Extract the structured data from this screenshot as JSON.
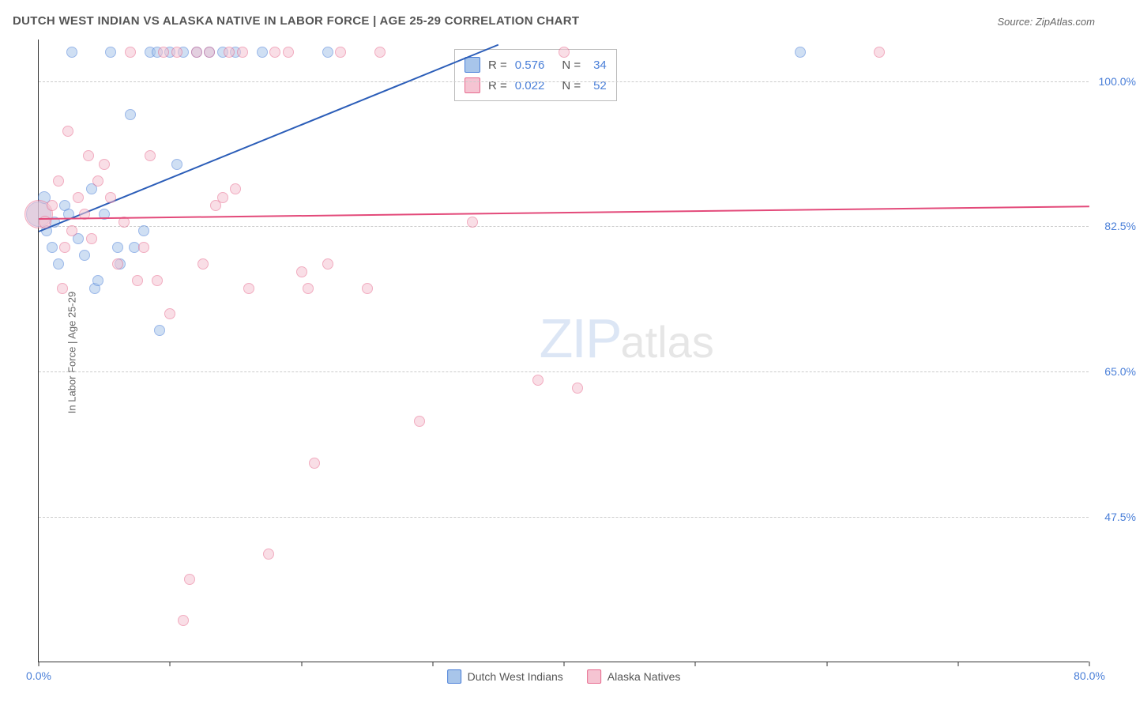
{
  "title": "DUTCH WEST INDIAN VS ALASKA NATIVE IN LABOR FORCE | AGE 25-29 CORRELATION CHART",
  "source_label": "Source: ",
  "source_name": "ZipAtlas.com",
  "ylabel": "In Labor Force | Age 25-29",
  "watermark_zip": "ZIP",
  "watermark_atlas": "atlas",
  "chart": {
    "type": "scatter",
    "xlim": [
      0,
      80
    ],
    "ylim": [
      30,
      105
    ],
    "xticks": [
      0.0,
      80.0
    ],
    "xtick_labels": [
      "0.0%",
      "80.0%"
    ],
    "xtick_marks": [
      0,
      10,
      20,
      30,
      40,
      50,
      60,
      70,
      80
    ],
    "yticks": [
      47.5,
      65.0,
      82.5,
      100.0
    ],
    "ytick_labels": [
      "47.5%",
      "65.0%",
      "82.5%",
      "100.0%"
    ],
    "grid_color": "#cccccc",
    "background_color": "#ffffff",
    "axis_color": "#333333",
    "tick_font_color": "#4a7fd8",
    "tick_fontsize": 14,
    "title_fontsize": 15,
    "title_color": "#555555",
    "ylabel_fontsize": 13,
    "series": [
      {
        "name": "Dutch West Indians",
        "fill": "#a8c5ea",
        "stroke": "#4a7fd8",
        "fill_opacity": 0.55,
        "R": "0.576",
        "N": "34",
        "trend": {
          "x1": 0,
          "y1": 82.0,
          "x2": 35,
          "y2": 104.5,
          "color": "#2b5db8",
          "width": 2
        },
        "points": [
          {
            "x": 0,
            "y": 84,
            "r": 16
          },
          {
            "x": 0.4,
            "y": 86,
            "r": 8
          },
          {
            "x": 0.6,
            "y": 82,
            "r": 7
          },
          {
            "x": 1,
            "y": 80,
            "r": 7
          },
          {
            "x": 1.2,
            "y": 83,
            "r": 7
          },
          {
            "x": 1.5,
            "y": 78,
            "r": 7
          },
          {
            "x": 2,
            "y": 85,
            "r": 7
          },
          {
            "x": 2.3,
            "y": 84,
            "r": 7
          },
          {
            "x": 2.5,
            "y": 103.5,
            "r": 7
          },
          {
            "x": 3,
            "y": 81,
            "r": 7
          },
          {
            "x": 3.5,
            "y": 79,
            "r": 7
          },
          {
            "x": 4,
            "y": 87,
            "r": 7
          },
          {
            "x": 4.3,
            "y": 75,
            "r": 7
          },
          {
            "x": 5,
            "y": 84,
            "r": 7
          },
          {
            "x": 5.5,
            "y": 103.5,
            "r": 7
          },
          {
            "x": 6,
            "y": 80,
            "r": 7
          },
          {
            "x": 6.2,
            "y": 78,
            "r": 7
          },
          {
            "x": 7,
            "y": 96,
            "r": 7
          },
          {
            "x": 7.3,
            "y": 80,
            "r": 7
          },
          {
            "x": 8,
            "y": 82,
            "r": 7
          },
          {
            "x": 8.5,
            "y": 103.5,
            "r": 7
          },
          {
            "x": 9,
            "y": 103.5,
            "r": 7
          },
          {
            "x": 9.2,
            "y": 70,
            "r": 7
          },
          {
            "x": 10,
            "y": 103.5,
            "r": 7
          },
          {
            "x": 10.5,
            "y": 90,
            "r": 7
          },
          {
            "x": 11,
            "y": 103.5,
            "r": 7
          },
          {
            "x": 12,
            "y": 103.5,
            "r": 7
          },
          {
            "x": 13,
            "y": 103.5,
            "r": 7
          },
          {
            "x": 14,
            "y": 103.5,
            "r": 7
          },
          {
            "x": 15,
            "y": 103.5,
            "r": 7
          },
          {
            "x": 17,
            "y": 103.5,
            "r": 7
          },
          {
            "x": 22,
            "y": 103.5,
            "r": 7
          },
          {
            "x": 58,
            "y": 103.5,
            "r": 7
          },
          {
            "x": 4.5,
            "y": 76,
            "r": 7
          }
        ]
      },
      {
        "name": "Alaska Natives",
        "fill": "#f5c4d2",
        "stroke": "#e76a8e",
        "fill_opacity": 0.55,
        "R": "0.022",
        "N": "52",
        "trend": {
          "x1": 0,
          "y1": 83.5,
          "x2": 80,
          "y2": 85.0,
          "color": "#e34a7a",
          "width": 2
        },
        "points": [
          {
            "x": 0,
            "y": 84,
            "r": 18
          },
          {
            "x": 0.5,
            "y": 83,
            "r": 8
          },
          {
            "x": 1,
            "y": 85,
            "r": 7
          },
          {
            "x": 1.5,
            "y": 88,
            "r": 7
          },
          {
            "x": 2,
            "y": 80,
            "r": 7
          },
          {
            "x": 2.5,
            "y": 82,
            "r": 7
          },
          {
            "x": 3,
            "y": 86,
            "r": 7
          },
          {
            "x": 3.5,
            "y": 84,
            "r": 7
          },
          {
            "x": 4,
            "y": 81,
            "r": 7
          },
          {
            "x": 4.5,
            "y": 88,
            "r": 7
          },
          {
            "x": 5,
            "y": 90,
            "r": 7
          },
          {
            "x": 5.5,
            "y": 86,
            "r": 7
          },
          {
            "x": 6,
            "y": 78,
            "r": 7
          },
          {
            "x": 6.5,
            "y": 83,
            "r": 7
          },
          {
            "x": 7,
            "y": 103.5,
            "r": 7
          },
          {
            "x": 7.5,
            "y": 76,
            "r": 7
          },
          {
            "x": 8,
            "y": 80,
            "r": 7
          },
          {
            "x": 8.5,
            "y": 91,
            "r": 7
          },
          {
            "x": 9,
            "y": 76,
            "r": 7
          },
          {
            "x": 9.5,
            "y": 103.5,
            "r": 7
          },
          {
            "x": 10,
            "y": 72,
            "r": 7
          },
          {
            "x": 10.5,
            "y": 103.5,
            "r": 7
          },
          {
            "x": 11,
            "y": 35,
            "r": 7
          },
          {
            "x": 11.5,
            "y": 40,
            "r": 7
          },
          {
            "x": 12,
            "y": 103.5,
            "r": 7
          },
          {
            "x": 12.5,
            "y": 78,
            "r": 7
          },
          {
            "x": 13,
            "y": 103.5,
            "r": 7
          },
          {
            "x": 13.5,
            "y": 85,
            "r": 7
          },
          {
            "x": 14,
            "y": 86,
            "r": 7
          },
          {
            "x": 14.5,
            "y": 103.5,
            "r": 7
          },
          {
            "x": 15,
            "y": 87,
            "r": 7
          },
          {
            "x": 15.5,
            "y": 103.5,
            "r": 7
          },
          {
            "x": 16,
            "y": 75,
            "r": 7
          },
          {
            "x": 17.5,
            "y": 43,
            "r": 7
          },
          {
            "x": 18,
            "y": 103.5,
            "r": 7
          },
          {
            "x": 19,
            "y": 103.5,
            "r": 7
          },
          {
            "x": 20,
            "y": 77,
            "r": 7
          },
          {
            "x": 20.5,
            "y": 75,
            "r": 7
          },
          {
            "x": 21,
            "y": 54,
            "r": 7
          },
          {
            "x": 22,
            "y": 78,
            "r": 7
          },
          {
            "x": 23,
            "y": 103.5,
            "r": 7
          },
          {
            "x": 25,
            "y": 75,
            "r": 7
          },
          {
            "x": 26,
            "y": 103.5,
            "r": 7
          },
          {
            "x": 29,
            "y": 59,
            "r": 7
          },
          {
            "x": 33,
            "y": 83,
            "r": 7
          },
          {
            "x": 38,
            "y": 64,
            "r": 7
          },
          {
            "x": 40,
            "y": 103.5,
            "r": 7
          },
          {
            "x": 41,
            "y": 63,
            "r": 7
          },
          {
            "x": 64,
            "y": 103.5,
            "r": 7
          },
          {
            "x": 2.2,
            "y": 94,
            "r": 7
          },
          {
            "x": 3.8,
            "y": 91,
            "r": 7
          },
          {
            "x": 1.8,
            "y": 75,
            "r": 7
          }
        ]
      }
    ],
    "legend_stats_label_R": "R = ",
    "legend_stats_label_N": "N = "
  }
}
